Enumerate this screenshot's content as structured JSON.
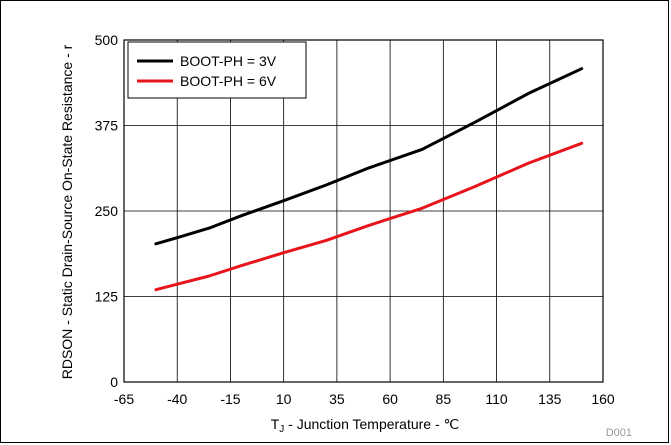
{
  "chart_data": {
    "type": "line",
    "title": "",
    "xlabel": "T",
    "xlabel_sub": "J",
    "xlabel_rest": " - Junction Temperature - ℃",
    "ylabel": "RDSON - Static Drain-Source On-State Resistance - r",
    "xlim": [
      -65,
      160
    ],
    "ylim": [
      0,
      500
    ],
    "x_ticks": [
      -65,
      -40,
      -15,
      10,
      35,
      60,
      85,
      110,
      135,
      160
    ],
    "y_ticks": [
      0,
      125,
      250,
      375,
      500
    ],
    "grid": true,
    "legend_position": "top-left",
    "series": [
      {
        "name": "BOOT-PH = 3V",
        "color": "#000000",
        "x": [
          -50,
          -40,
          -25,
          -10,
          10,
          30,
          50,
          75,
          100,
          125,
          150
        ],
        "y": [
          202,
          211,
          225,
          243,
          265,
          288,
          313,
          340,
          380,
          422,
          458
        ]
      },
      {
        "name": "BOOT-PH = 6V",
        "color": "#e8141c",
        "x": [
          -50,
          -40,
          -25,
          -10,
          10,
          30,
          50,
          75,
          100,
          125,
          150
        ],
        "y": [
          135,
          143,
          155,
          170,
          189,
          207,
          229,
          254,
          286,
          320,
          349
        ]
      }
    ],
    "figure_code": "D001"
  }
}
